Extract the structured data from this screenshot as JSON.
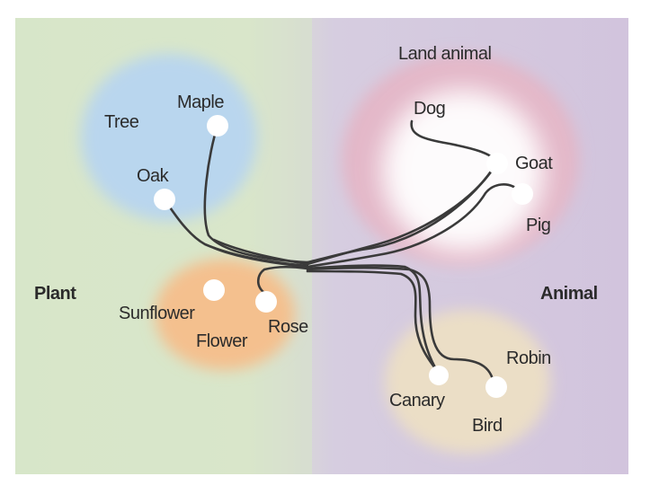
{
  "domains": {
    "plant": "Plant",
    "animal": "Animal"
  },
  "clusters": {
    "tree": "Tree",
    "flower": "Flower",
    "land_animal": "Land animal",
    "bird": "Bird"
  },
  "leaves": {
    "maple": "Maple",
    "oak": "Oak",
    "sunflower": "Sunflower",
    "rose": "Rose",
    "dog": "Dog",
    "goat": "Goat",
    "pig": "Pig",
    "canary": "Canary",
    "robin": "Robin"
  },
  "colors": {
    "plant_region": "#d7e6c9",
    "animal_region": "#d4c6de",
    "tree_cluster": "#b9d6ee",
    "flower_cluster": "#f4c08e",
    "land_animal_cluster": "#e6b6c7",
    "bird_cluster": "#eadcc3",
    "trajectory": "#3a3a3a",
    "node": "#ffffff"
  }
}
